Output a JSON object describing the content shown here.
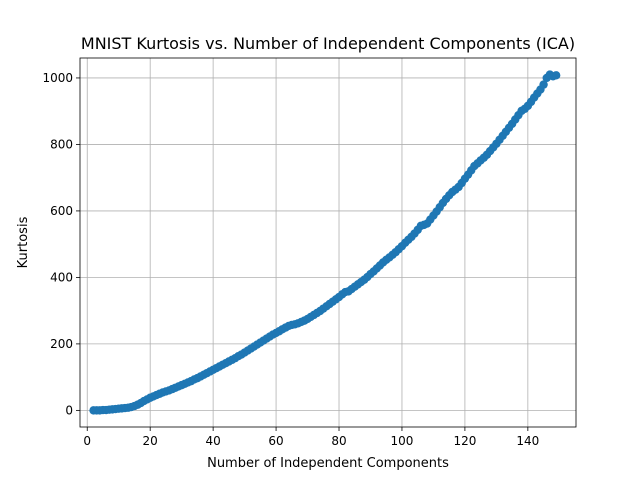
{
  "chart_data": {
    "type": "scatter",
    "title": "MNIST Kurtosis vs. Number of Independent Components (ICA)",
    "xlabel": "Number of Independent Components",
    "ylabel": "Kurtosis",
    "xlim": [
      -2.3,
      155.3
    ],
    "ylim": [
      -50,
      1060
    ],
    "grid": true,
    "marker_color": "#1f77b4",
    "x_ticks": [
      0,
      20,
      40,
      60,
      80,
      100,
      120,
      140
    ],
    "y_ticks": [
      0,
      200,
      400,
      600,
      800,
      1000
    ],
    "x_tick_labels": [
      "0",
      "20",
      "40",
      "60",
      "80",
      "100",
      "120",
      "140"
    ],
    "y_tick_labels": [
      "0",
      "200",
      "400",
      "600",
      "800",
      "1000"
    ],
    "x": [
      2,
      3,
      4,
      5,
      6,
      7,
      8,
      9,
      10,
      11,
      12,
      13,
      14,
      15,
      16,
      17,
      18,
      19,
      20,
      21,
      22,
      23,
      24,
      25,
      26,
      27,
      28,
      29,
      30,
      31,
      32,
      33,
      34,
      35,
      36,
      37,
      38,
      39,
      40,
      41,
      42,
      43,
      44,
      45,
      46,
      47,
      48,
      49,
      50,
      51,
      52,
      53,
      54,
      55,
      56,
      57,
      58,
      59,
      60,
      61,
      62,
      63,
      64,
      65,
      66,
      67,
      68,
      69,
      70,
      71,
      72,
      73,
      74,
      75,
      76,
      77,
      78,
      79,
      80,
      81,
      82,
      83,
      84,
      85,
      86,
      87,
      88,
      89,
      90,
      91,
      92,
      93,
      94,
      95,
      96,
      97,
      98,
      99,
      100,
      101,
      102,
      103,
      104,
      105,
      106,
      107,
      108,
      109,
      110,
      111,
      112,
      113,
      114,
      115,
      116,
      117,
      118,
      119,
      120,
      121,
      122,
      123,
      124,
      125,
      126,
      127,
      128,
      129,
      130,
      131,
      132,
      133,
      134,
      135,
      136,
      137,
      138,
      139,
      140,
      141,
      142,
      143,
      144,
      145,
      146,
      147,
      148,
      149
    ],
    "y": [
      0,
      0,
      0,
      1,
      1,
      2,
      3,
      4,
      5,
      6,
      7,
      8,
      10,
      13,
      17,
      22,
      28,
      33,
      38,
      42,
      46,
      50,
      54,
      57,
      60,
      64,
      68,
      72,
      76,
      80,
      84,
      88,
      93,
      97,
      102,
      107,
      112,
      117,
      122,
      127,
      132,
      137,
      142,
      147,
      152,
      157,
      163,
      168,
      174,
      180,
      186,
      192,
      198,
      204,
      210,
      216,
      222,
      228,
      233,
      238,
      244,
      249,
      254,
      257,
      259,
      262,
      266,
      270,
      275,
      281,
      287,
      293,
      299,
      306,
      313,
      320,
      327,
      334,
      341,
      349,
      356,
      358,
      365,
      372,
      379,
      386,
      393,
      401,
      410,
      418,
      427,
      436,
      445,
      453,
      460,
      468,
      476,
      485,
      494,
      504,
      513,
      522,
      532,
      543,
      555,
      558,
      562,
      574,
      586,
      598,
      611,
      624,
      636,
      647,
      657,
      664,
      672,
      684,
      697,
      709,
      722,
      735,
      743,
      752,
      760,
      769,
      780,
      791,
      802,
      814,
      826,
      838,
      850,
      862,
      875,
      888,
      901,
      907,
      916,
      928,
      941,
      953,
      965,
      980,
      1000,
      1010,
      1005,
      1008
    ]
  }
}
